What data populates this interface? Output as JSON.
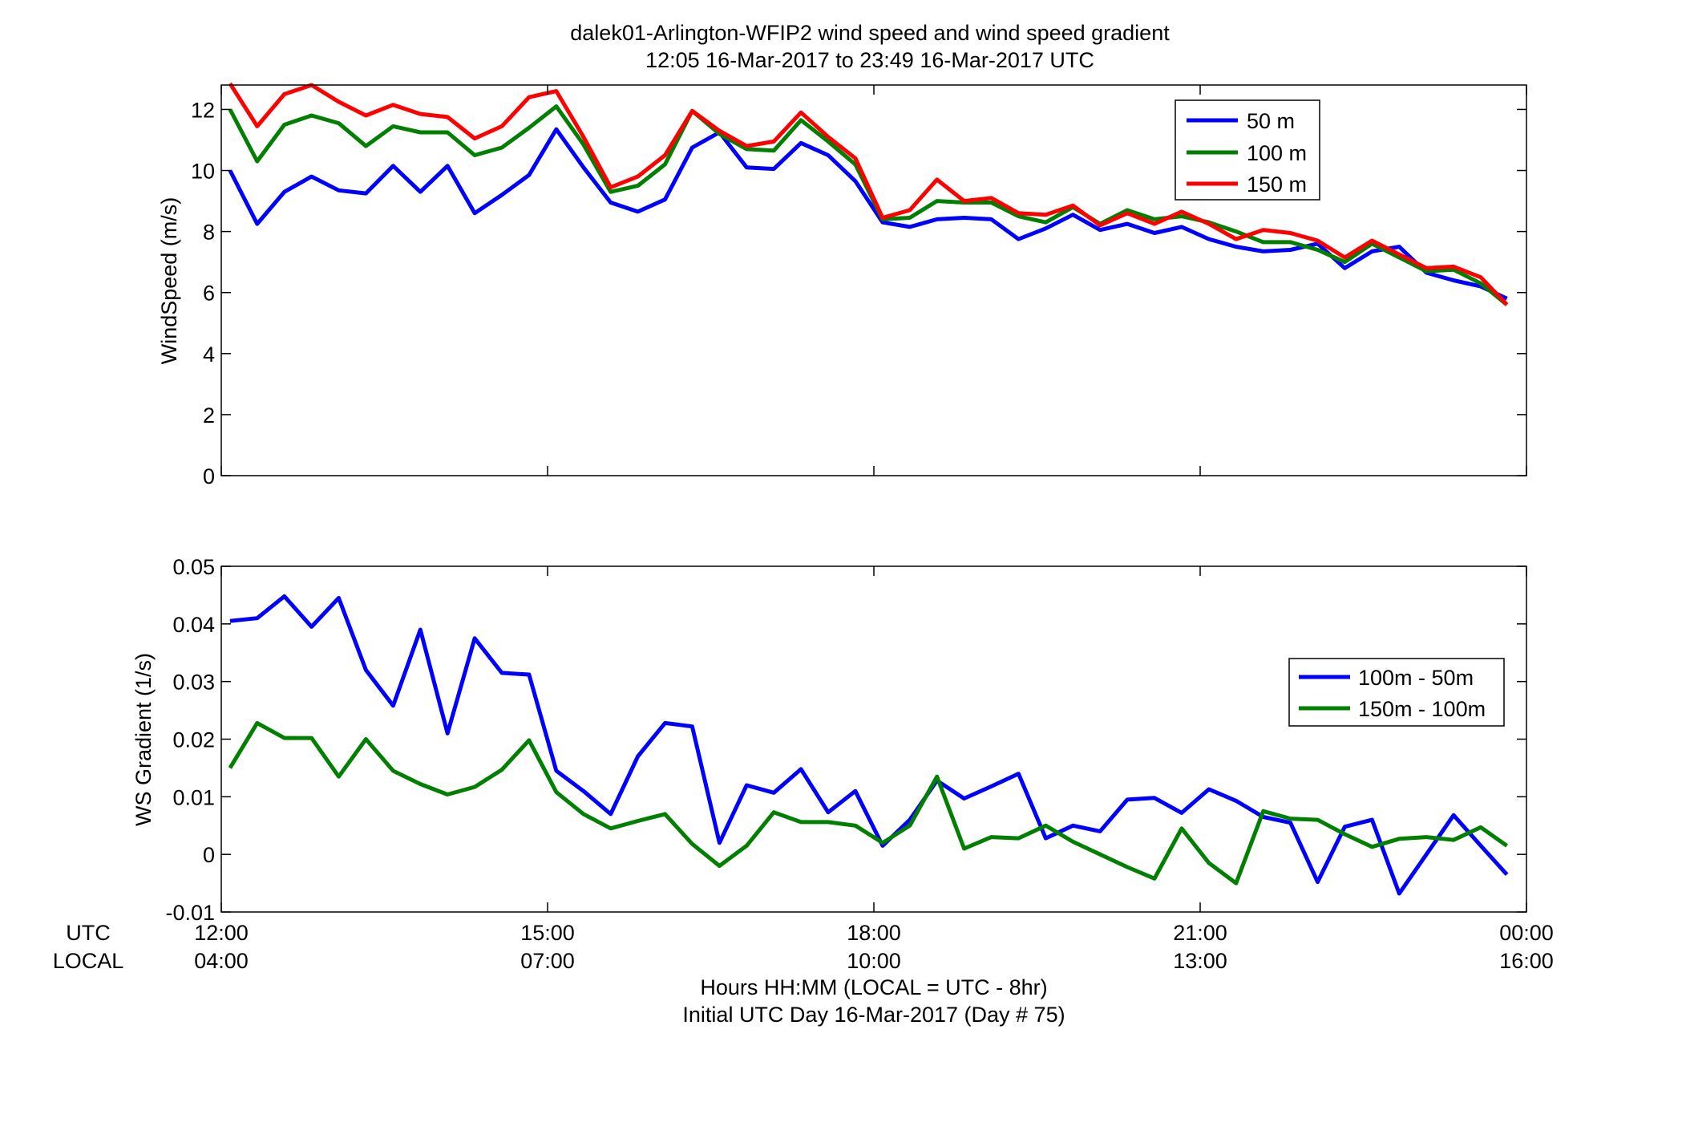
{
  "figure": {
    "title_line1": "dalek01-Arlington-WFIP2  wind speed and wind speed gradient",
    "title_line2": "12:05 16-Mar-2017 to 23:49 16-Mar-2017  UTC",
    "row_label_utc": "UTC",
    "row_label_local": "LOCAL",
    "xlabel_line1": "Hours HH:MM  (LOCAL = UTC - 8hr)",
    "xlabel_line2": "Initial UTC Day 16-Mar-2017 (Day # 75)",
    "colors": {
      "blue": "#0000ff",
      "green": "#007f00",
      "red": "#ff0000",
      "axis": "#000000"
    }
  },
  "chart_data": [
    {
      "type": "line",
      "ylabel": "WindSpeed (m/s)",
      "xlim": [
        12.0,
        24.0
      ],
      "ylim": [
        0,
        12.8
      ],
      "yticks": [
        0,
        2,
        4,
        6,
        8,
        10,
        12
      ],
      "ytick_labels": [
        "0",
        "2",
        "4",
        "6",
        "8",
        "10",
        "12"
      ],
      "x": [
        12.08,
        12.33,
        12.58,
        12.83,
        13.08,
        13.33,
        13.58,
        13.83,
        14.08,
        14.33,
        14.58,
        14.83,
        15.08,
        15.33,
        15.58,
        15.83,
        16.08,
        16.33,
        16.58,
        16.83,
        17.08,
        17.33,
        17.58,
        17.83,
        18.08,
        18.33,
        18.58,
        18.83,
        19.08,
        19.33,
        19.58,
        19.83,
        20.08,
        20.33,
        20.58,
        20.83,
        21.08,
        21.33,
        21.58,
        21.83,
        22.08,
        22.33,
        22.58,
        22.83,
        23.08,
        23.33,
        23.58,
        23.82
      ],
      "series": [
        {
          "name": "50 m",
          "color": "#0000ff",
          "values": [
            10.0,
            8.25,
            9.3,
            9.8,
            9.35,
            9.25,
            10.15,
            9.3,
            10.15,
            8.6,
            9.2,
            9.85,
            11.35,
            10.1,
            8.95,
            8.65,
            9.05,
            10.75,
            11.25,
            10.1,
            10.05,
            10.9,
            10.5,
            9.65,
            8.3,
            8.15,
            8.4,
            8.45,
            8.4,
            7.75,
            8.1,
            8.55,
            8.05,
            8.25,
            7.95,
            8.15,
            7.75,
            7.5,
            7.35,
            7.4,
            7.6,
            6.8,
            7.35,
            7.5,
            6.65,
            6.4,
            6.2,
            5.8
          ]
        },
        {
          "name": "100 m",
          "color": "#007f00",
          "values": [
            12.0,
            10.3,
            11.5,
            11.8,
            11.55,
            10.8,
            11.45,
            11.25,
            11.25,
            10.5,
            10.75,
            11.4,
            12.1,
            10.85,
            9.3,
            9.5,
            10.2,
            11.95,
            11.2,
            10.7,
            10.65,
            11.65,
            10.95,
            10.2,
            8.4,
            8.45,
            9.0,
            8.95,
            8.95,
            8.5,
            8.3,
            8.8,
            8.25,
            8.7,
            8.4,
            8.5,
            8.3,
            8.0,
            7.65,
            7.65,
            7.4,
            7.0,
            7.6,
            7.15,
            6.7,
            6.75,
            6.3,
            5.6
          ]
        },
        {
          "name": "150 m",
          "color": "#ff0000",
          "values": [
            12.85,
            11.45,
            12.5,
            12.8,
            12.25,
            11.8,
            12.15,
            11.85,
            11.75,
            11.05,
            11.45,
            12.4,
            12.6,
            11.1,
            9.45,
            9.8,
            10.5,
            11.95,
            11.3,
            10.8,
            10.95,
            11.9,
            11.1,
            10.4,
            8.45,
            8.7,
            9.7,
            9.0,
            9.1,
            8.6,
            8.55,
            8.85,
            8.2,
            8.6,
            8.25,
            8.65,
            8.25,
            7.75,
            8.05,
            7.95,
            7.7,
            7.15,
            7.7,
            7.25,
            6.8,
            6.85,
            6.5,
            5.6
          ]
        }
      ],
      "legend": "top-right",
      "grid": false
    },
    {
      "type": "line",
      "ylabel": "WS Gradient (1/s)",
      "xlim": [
        12.0,
        24.0
      ],
      "ylim": [
        -0.01,
        0.05
      ],
      "yticks": [
        -0.01,
        0,
        0.01,
        0.02,
        0.03,
        0.04,
        0.05
      ],
      "ytick_labels": [
        "-0.01",
        "0",
        "0.01",
        "0.02",
        "0.03",
        "0.04",
        "0.05"
      ],
      "xticks": [
        12,
        15,
        18,
        21,
        24
      ],
      "xtick_labels_utc": [
        "12:00",
        "15:00",
        "18:00",
        "21:00",
        "00:00"
      ],
      "xtick_labels_local": [
        "04:00",
        "07:00",
        "10:00",
        "13:00",
        "16:00"
      ],
      "x": [
        12.08,
        12.33,
        12.58,
        12.83,
        13.08,
        13.33,
        13.58,
        13.83,
        14.08,
        14.33,
        14.58,
        14.83,
        15.08,
        15.33,
        15.58,
        15.83,
        16.08,
        16.33,
        16.58,
        16.83,
        17.08,
        17.33,
        17.58,
        17.83,
        18.08,
        18.33,
        18.58,
        18.83,
        19.08,
        19.33,
        19.58,
        19.83,
        20.08,
        20.33,
        20.58,
        20.83,
        21.08,
        21.33,
        21.58,
        21.83,
        22.08,
        22.33,
        22.58,
        22.83,
        23.08,
        23.33,
        23.58,
        23.82
      ],
      "series": [
        {
          "name": "100m - 50m",
          "color": "#0000ff",
          "values": [
            0.0405,
            0.041,
            0.0448,
            0.0395,
            0.0445,
            0.032,
            0.0258,
            0.039,
            0.021,
            0.0375,
            0.0315,
            0.0312,
            0.0145,
            0.011,
            0.007,
            0.017,
            0.0228,
            0.0222,
            0.002,
            0.012,
            0.0107,
            0.0148,
            0.0073,
            0.011,
            0.0015,
            0.006,
            0.0128,
            0.0097,
            0.0118,
            0.014,
            0.0028,
            0.005,
            0.004,
            0.0095,
            0.0098,
            0.0072,
            0.0113,
            0.0093,
            0.0065,
            0.0055,
            -0.0048,
            0.0048,
            0.006,
            -0.0068,
            0.0,
            0.0068,
            0.0015,
            -0.0035
          ]
        },
        {
          "name": "150m - 100m",
          "color": "#007f00",
          "values": [
            0.015,
            0.0228,
            0.0202,
            0.0202,
            0.0135,
            0.02,
            0.0145,
            0.0122,
            0.0104,
            0.0117,
            0.0147,
            0.0198,
            0.0108,
            0.007,
            0.0045,
            0.0058,
            0.007,
            0.0018,
            -0.002,
            0.0015,
            0.0073,
            0.0056,
            0.0056,
            0.005,
            0.002,
            0.005,
            0.0135,
            0.001,
            0.003,
            0.0028,
            0.005,
            0.0022,
            0.0,
            -0.0022,
            -0.0042,
            0.0045,
            -0.0015,
            -0.005,
            0.0075,
            0.0062,
            0.006,
            0.0035,
            0.0013,
            0.0027,
            0.003,
            0.0025,
            0.0047,
            0.0015
          ]
        }
      ],
      "legend": "right",
      "grid": false
    }
  ]
}
